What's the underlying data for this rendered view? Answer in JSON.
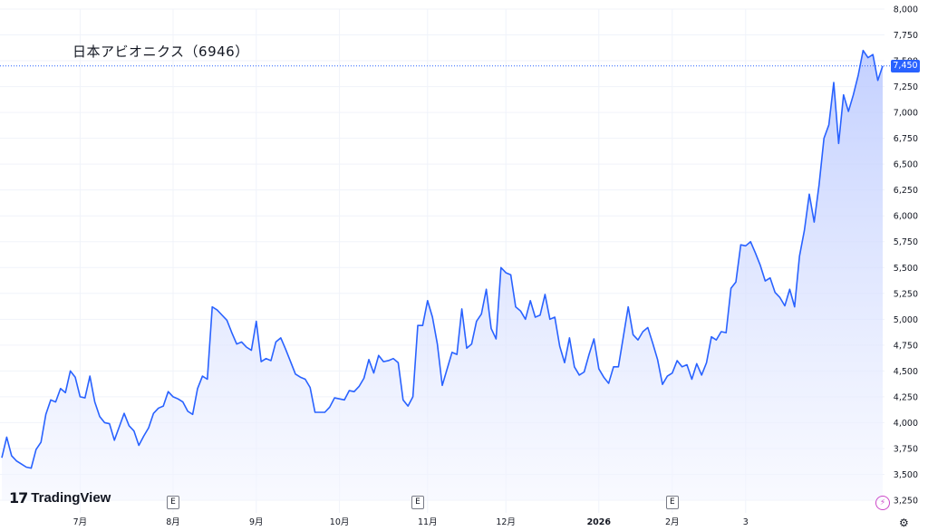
{
  "title": "日本アビオニクス（6946）",
  "logo": {
    "mark": "17",
    "text": "TradingView"
  },
  "current_price_label": "7,450",
  "earnings_marker": "E",
  "icons": {
    "bolt": "lightning-icon",
    "settings": "gear-icon"
  },
  "colors": {
    "line": "#2962ff",
    "area_top": "#b9c8ff",
    "area_bottom": "#f4f6ff",
    "badge": "#2962ff"
  },
  "chart_data": {
    "type": "area",
    "title": "日本アビオニクス（6946）",
    "ylim": [
      3250,
      8000
    ],
    "yticks": [
      3250,
      3500,
      3750,
      4000,
      4250,
      4500,
      4750,
      5000,
      5250,
      5500,
      5750,
      6000,
      6250,
      6500,
      6750,
      7000,
      7250,
      7500,
      7750,
      8000
    ],
    "ytick_labels": [
      "3,250",
      "3,500",
      "3,750",
      "4,000",
      "4,250",
      "4,500",
      "4,750",
      "5,000",
      "5,250",
      "5,500",
      "5,750",
      "6,000",
      "6,250",
      "6,500",
      "6,750",
      "7,000",
      "7,250",
      "7,500",
      "7,750",
      "8,000"
    ],
    "xticks": [
      {
        "label": "7月",
        "i": 16,
        "bold": false
      },
      {
        "label": "8月",
        "i": 35,
        "bold": false
      },
      {
        "label": "9月",
        "i": 52,
        "bold": false
      },
      {
        "label": "10月",
        "i": 69,
        "bold": false
      },
      {
        "label": "11月",
        "i": 87,
        "bold": false
      },
      {
        "label": "12月",
        "i": 103,
        "bold": false
      },
      {
        "label": "2026",
        "i": 122,
        "bold": true
      },
      {
        "label": "2月",
        "i": 137,
        "bold": false
      },
      {
        "label": "3",
        "i": 152,
        "bold": false
      }
    ],
    "earnings_marker_indices": [
      35,
      85,
      137
    ],
    "last_value": 7450,
    "values": [
      3660,
      3860,
      3680,
      3630,
      3600,
      3570,
      3560,
      3740,
      3810,
      4080,
      4220,
      4200,
      4330,
      4290,
      4500,
      4440,
      4250,
      4240,
      4450,
      4200,
      4060,
      4000,
      3990,
      3830,
      3960,
      4090,
      3970,
      3920,
      3780,
      3870,
      3950,
      4090,
      4140,
      4160,
      4300,
      4250,
      4230,
      4200,
      4110,
      4080,
      4330,
      4450,
      4420,
      5120,
      5090,
      5040,
      4990,
      4870,
      4760,
      4780,
      4730,
      4700,
      4980,
      4590,
      4620,
      4600,
      4780,
      4820,
      4710,
      4590,
      4470,
      4440,
      4420,
      4340,
      4100,
      4100,
      4100,
      4150,
      4240,
      4230,
      4220,
      4310,
      4300,
      4350,
      4430,
      4610,
      4480,
      4650,
      4590,
      4600,
      4620,
      4580,
      4220,
      4160,
      4250,
      4940,
      4940,
      5180,
      5020,
      4760,
      4360,
      4520,
      4680,
      4660,
      5100,
      4720,
      4760,
      4980,
      5050,
      5290,
      4910,
      4810,
      5500,
      5450,
      5430,
      5120,
      5080,
      5000,
      5180,
      5020,
      5040,
      5240,
      5000,
      5020,
      4740,
      4580,
      4820,
      4540,
      4460,
      4490,
      4660,
      4810,
      4520,
      4440,
      4380,
      4540,
      4540,
      4830,
      5120,
      4850,
      4800,
      4880,
      4920,
      4770,
      4610,
      4370,
      4450,
      4480,
      4600,
      4540,
      4560,
      4420,
      4570,
      4460,
      4580,
      4830,
      4800,
      4880,
      4870,
      5300,
      5360,
      5720,
      5710,
      5750,
      5640,
      5520,
      5370,
      5400,
      5260,
      5210,
      5130,
      5290,
      5120,
      5610,
      5860,
      6210,
      5940,
      6300,
      6750,
      6880,
      7290,
      6700,
      7170,
      7010,
      7170,
      7360,
      7600,
      7530,
      7560,
      7310,
      7450
    ]
  }
}
